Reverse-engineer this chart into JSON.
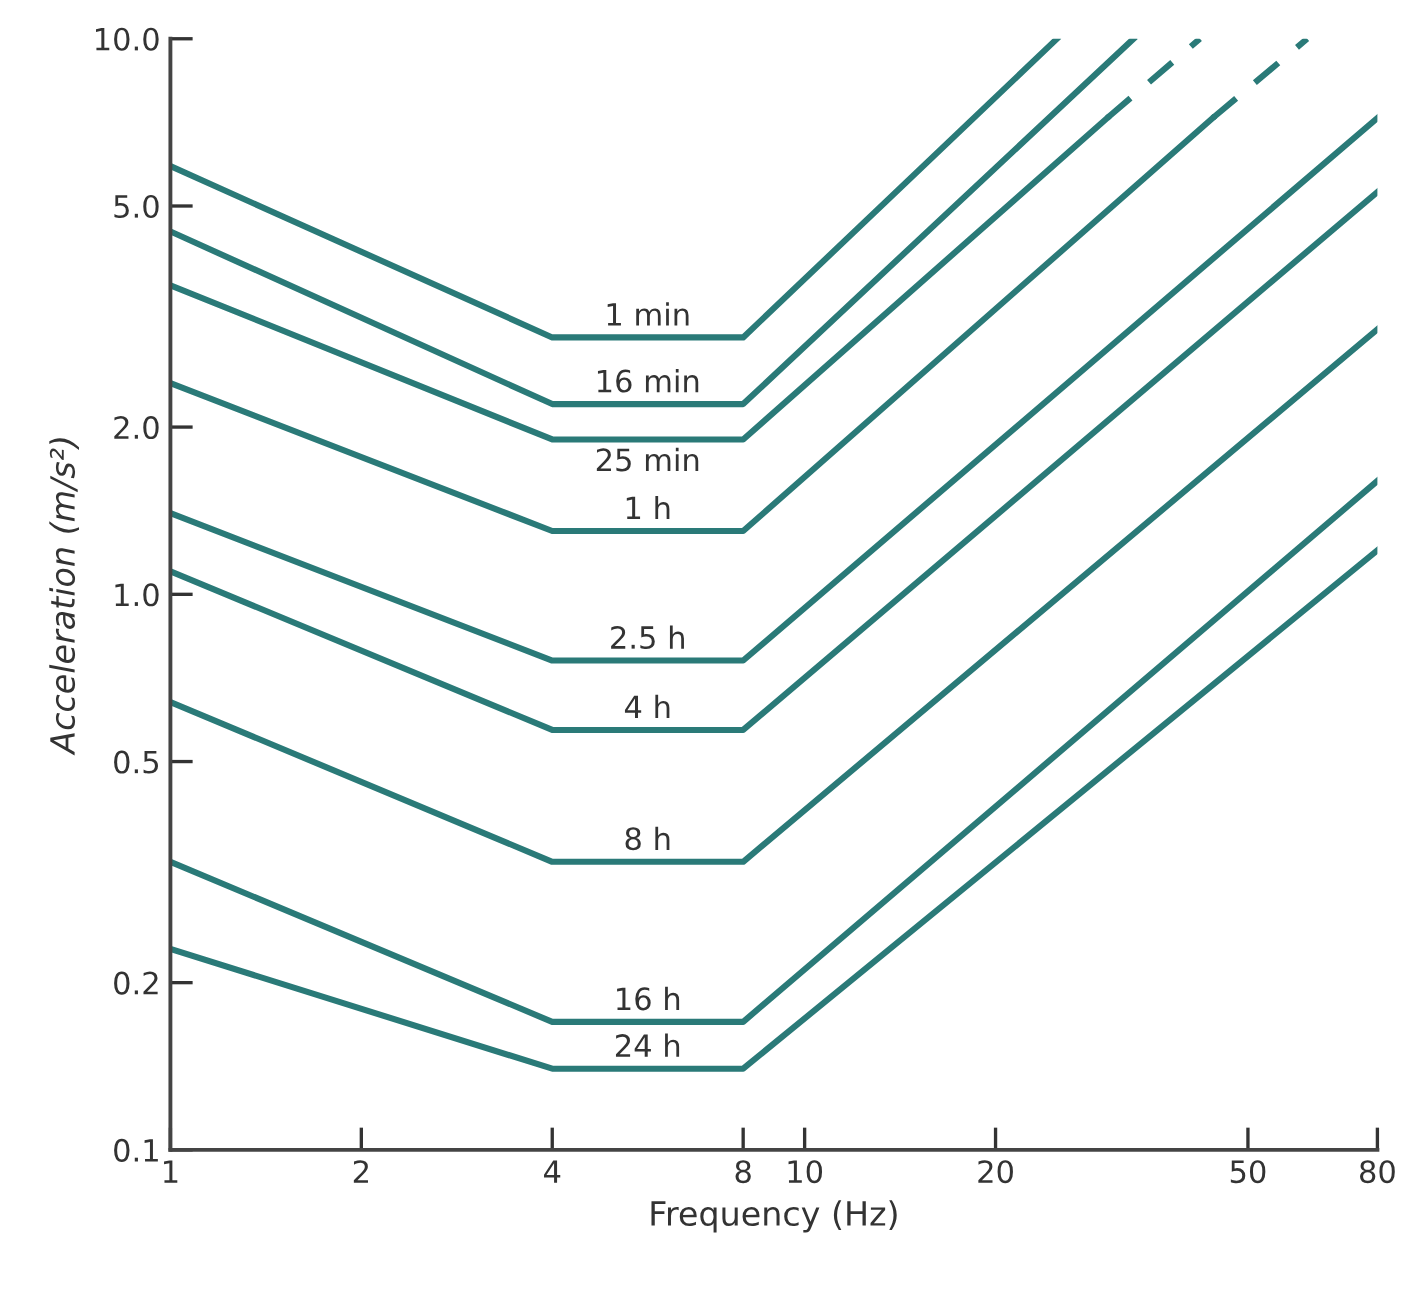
{
  "chart_data": {
    "type": "line",
    "xlabel": "Frequency (Hz)",
    "ylabel": "Acceleration (m/s²)",
    "log": "xy",
    "grid": false,
    "legend": false,
    "marker": "none",
    "xlim": [
      1,
      80
    ],
    "xticks": [
      1,
      2,
      4,
      8,
      10,
      20,
      50,
      80
    ],
    "ylim": [
      0.1,
      10
    ],
    "yticks": [
      0.1,
      0.2,
      0.5,
      {
        "value": 1,
        "label": "1.0"
      },
      {
        "value": 2,
        "label": "2.0"
      },
      {
        "value": 5,
        "label": "5.0"
      },
      {
        "value": 10,
        "label": "10.0"
      }
    ],
    "series": [
      {
        "name": "1 min",
        "color": "#2a7a78",
        "x": [
          1,
          4,
          8,
          25
        ],
        "values": [
          5.9,
          2.9,
          2.9,
          10
        ]
      },
      {
        "name": "16 min",
        "color": "#2a7a78",
        "x": [
          1,
          4,
          8,
          33
        ],
        "values": [
          4.5,
          2.2,
          2.2,
          10
        ]
      },
      {
        "name": "25 min",
        "color": "#2a7a78",
        "x": [
          1,
          4,
          8,
          30
        ],
        "values": [
          3.6,
          1.9,
          1.9,
          7.2
        ]
      },
      {
        "color": "#2a7a78",
        "line_style": "dashed",
        "x": [
          30,
          42
        ],
        "values": [
          7.2,
          10
        ]
      },
      {
        "name": "1 h",
        "color": "#2a7a78",
        "x": [
          1,
          4,
          8,
          44
        ],
        "values": [
          2.4,
          1.3,
          1.3,
          7.2
        ]
      },
      {
        "color": "#2a7a78",
        "line_style": "dashed",
        "x": [
          44,
          62
        ],
        "values": [
          7.2,
          10
        ]
      },
      {
        "name": "2.5 h",
        "color": "#2a7a78",
        "x": [
          1,
          4,
          8,
          80
        ],
        "values": [
          1.4,
          0.76,
          0.76,
          7.2
        ]
      },
      {
        "name": "4 h",
        "color": "#2a7a78",
        "x": [
          1,
          4,
          8,
          80
        ],
        "values": [
          1.1,
          0.57,
          0.57,
          5.3
        ]
      },
      {
        "name": "8 h",
        "color": "#2a7a78",
        "x": [
          1,
          4,
          8,
          80
        ],
        "values": [
          0.64,
          0.33,
          0.33,
          3.0
        ]
      },
      {
        "name": "16 h",
        "color": "#2a7a78",
        "x": [
          1,
          4,
          8,
          80
        ],
        "values": [
          0.33,
          0.17,
          0.17,
          1.6
        ]
      },
      {
        "name": "24 h",
        "color": "#2a7a78",
        "x": [
          1,
          4,
          8,
          80
        ],
        "values": [
          0.23,
          0.14,
          0.14,
          1.2
        ]
      }
    ]
  }
}
